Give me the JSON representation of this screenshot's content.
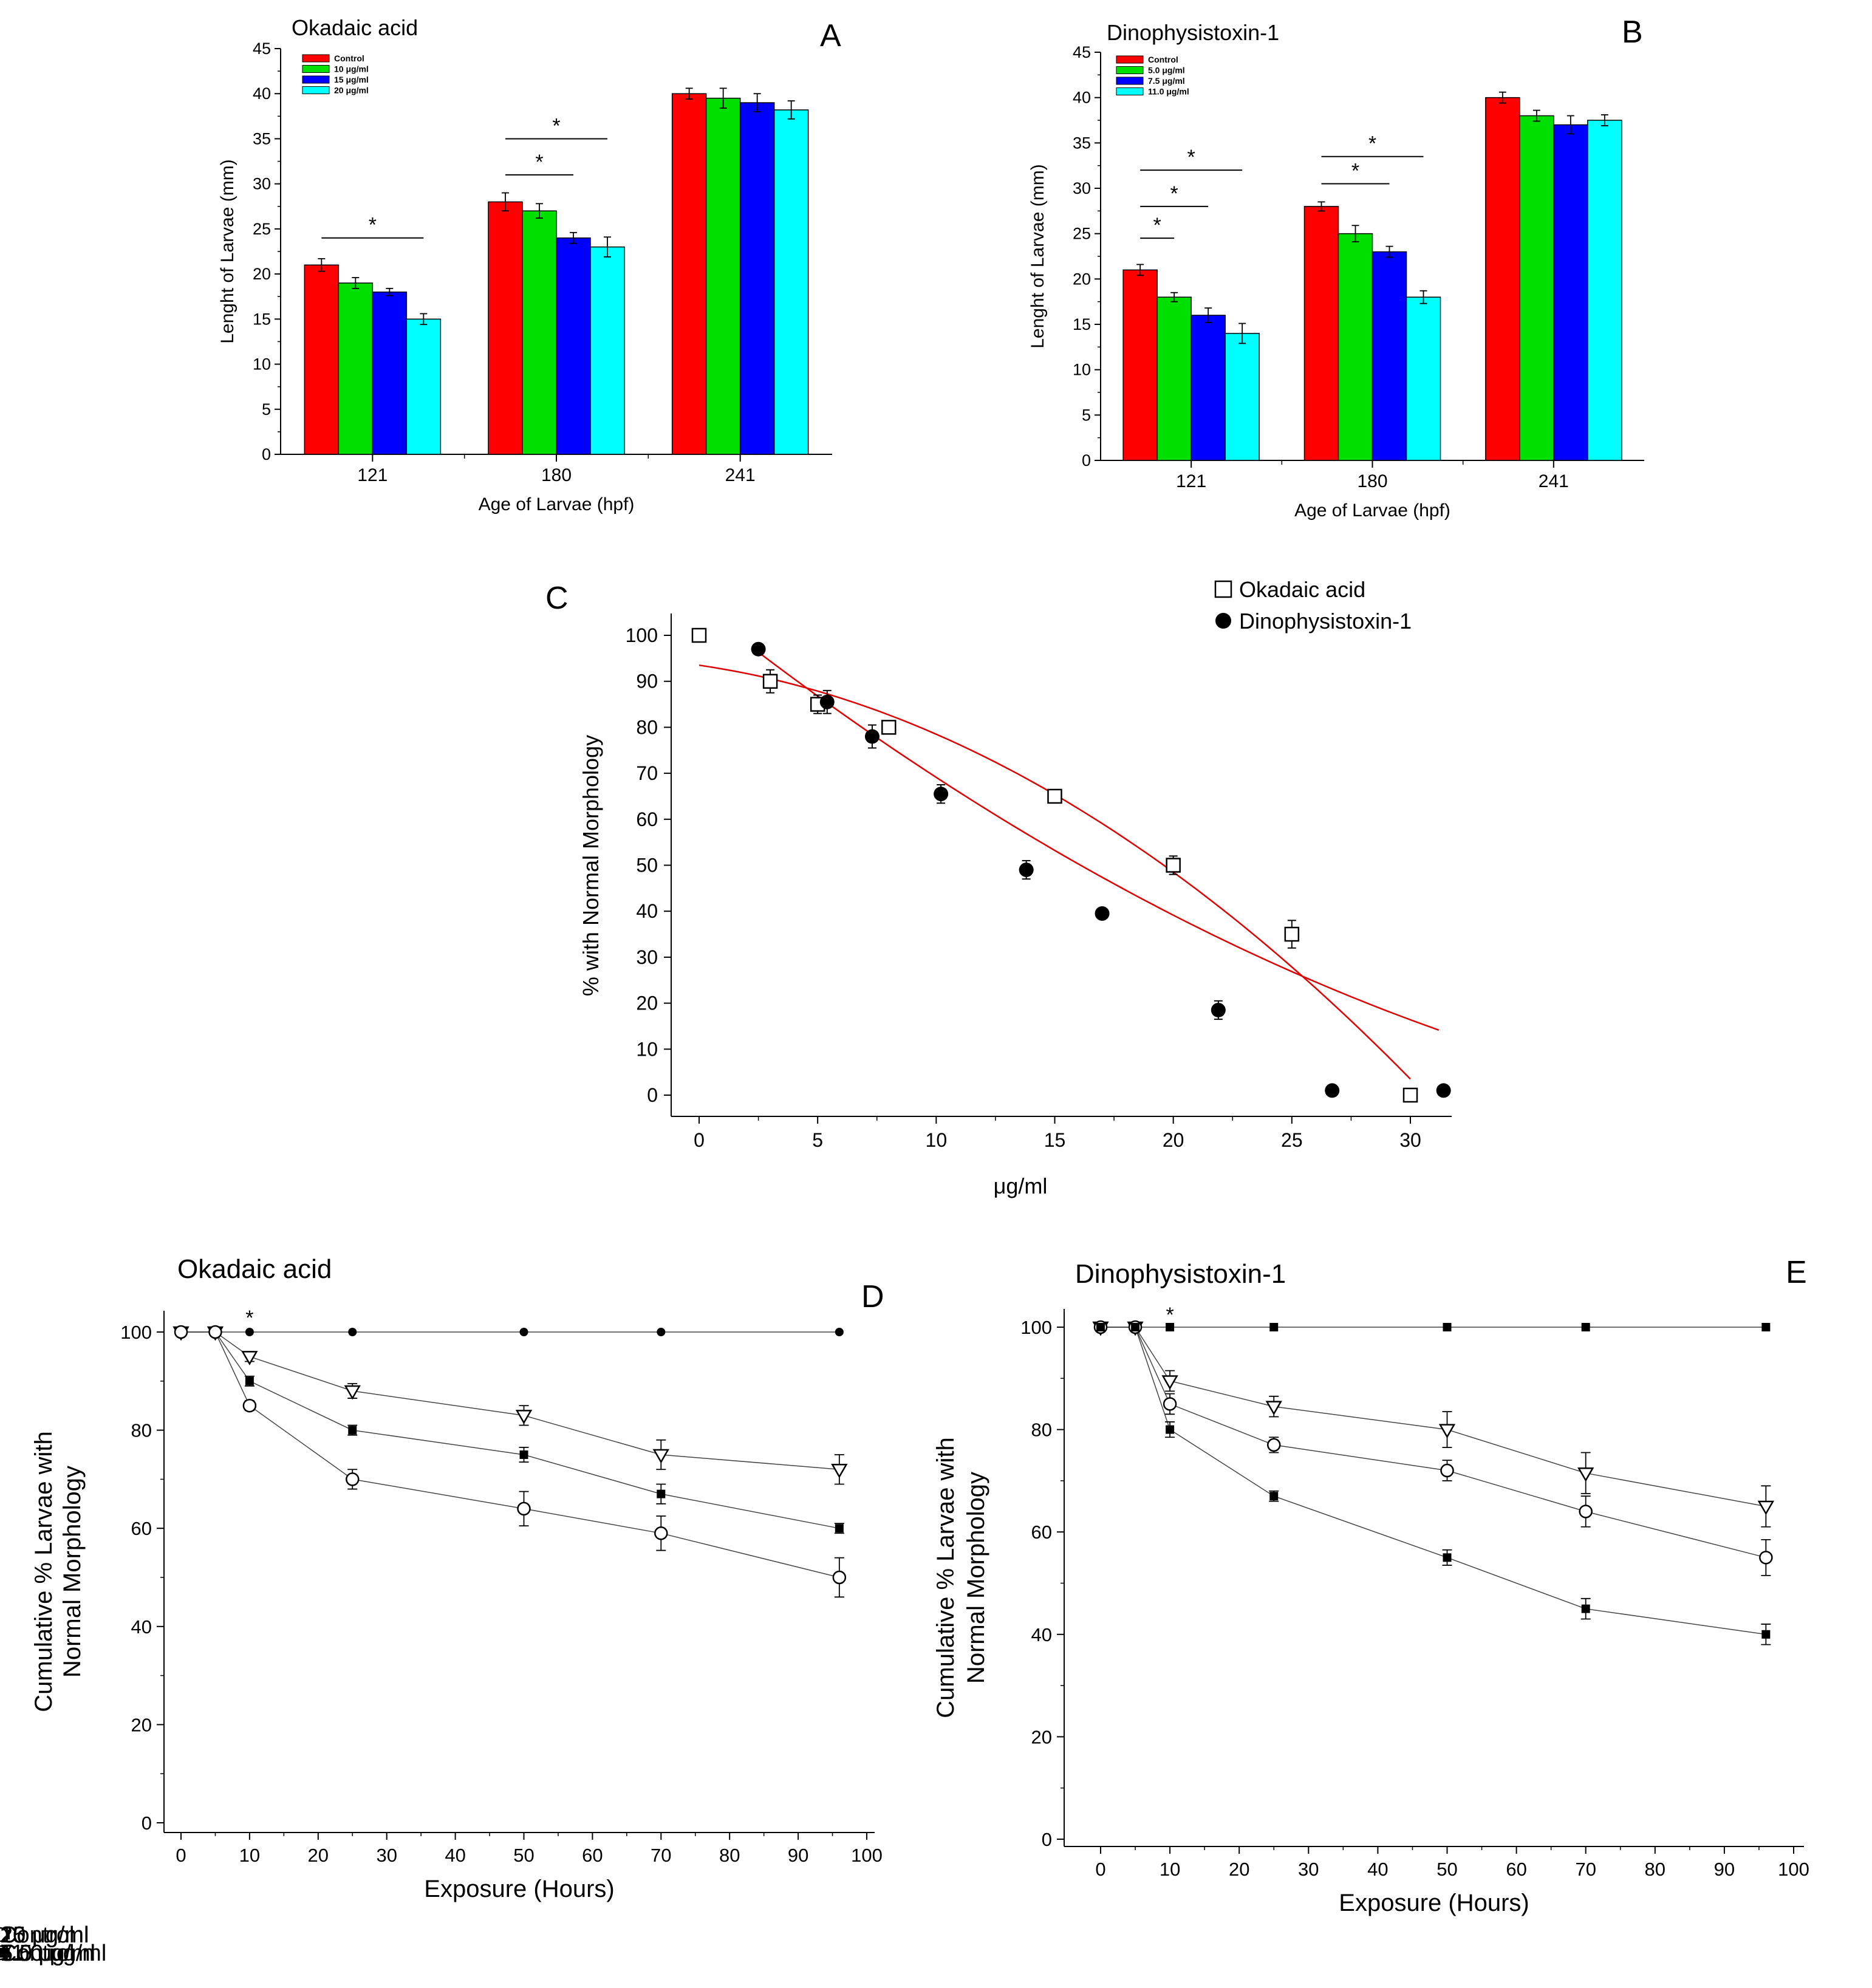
{
  "chart_data": [
    {
      "id": "A",
      "type": "bar",
      "panel_label": "A",
      "title": "Okadaic acid",
      "xlabel": "Age of Larvae (hpf)",
      "ylabel": "Lenght of Larvae (mm)",
      "categories": [
        "121",
        "180",
        "241"
      ],
      "ylim": [
        0,
        45
      ],
      "yticks": [
        "0",
        "5",
        "10",
        "15",
        "20",
        "25",
        "30",
        "35",
        "40",
        "45"
      ],
      "series": [
        {
          "name": "Control",
          "color": "#ff0000",
          "values": [
            21,
            28,
            40
          ],
          "errors": [
            0.7,
            1.0,
            0.6
          ]
        },
        {
          "name": "10 μg/ml",
          "color": "#00e000",
          "values": [
            19,
            27,
            39.5
          ],
          "errors": [
            0.6,
            0.8,
            1.1
          ]
        },
        {
          "name": "15 μg/ml",
          "color": "#0000ff",
          "values": [
            18,
            24,
            39
          ],
          "errors": [
            0.4,
            0.6,
            1.0
          ]
        },
        {
          "name": "20 μg/ml",
          "color": "#00ffff",
          "values": [
            15,
            23,
            38.2
          ],
          "errors": [
            0.6,
            1.1,
            1.0
          ]
        }
      ],
      "significance": [
        {
          "text": "*",
          "group": 0,
          "from": 0,
          "to": 3,
          "y": 24
        },
        {
          "text": "*",
          "group": 1,
          "from": 0,
          "to": 2,
          "y": 31
        },
        {
          "text": "*",
          "group": 1,
          "from": 0,
          "to": 3,
          "y": 35
        }
      ]
    },
    {
      "id": "B",
      "type": "bar",
      "panel_label": "B",
      "title": "Dinophysistoxin-1",
      "xlabel": "Age of Larvae (hpf)",
      "ylabel": "Lenght of Larvae (mm)",
      "categories": [
        "121",
        "180",
        "241"
      ],
      "ylim": [
        0,
        45
      ],
      "yticks": [
        "0",
        "5",
        "10",
        "15",
        "20",
        "25",
        "30",
        "35",
        "40",
        "45"
      ],
      "series": [
        {
          "name": "Control",
          "color": "#ff0000",
          "values": [
            21,
            28,
            40
          ],
          "errors": [
            0.6,
            0.5,
            0.6
          ]
        },
        {
          "name": "5.0 μg/ml",
          "color": "#00e000",
          "values": [
            18,
            25,
            38
          ],
          "errors": [
            0.5,
            0.9,
            0.6
          ]
        },
        {
          "name": "7.5 μg/ml",
          "color": "#0000ff",
          "values": [
            16,
            23,
            37
          ],
          "errors": [
            0.8,
            0.6,
            1.0
          ]
        },
        {
          "name": "11.0 μg/ml",
          "color": "#00ffff",
          "values": [
            14,
            18,
            37.5
          ],
          "errors": [
            1.1,
            0.7,
            0.6
          ]
        }
      ],
      "significance": [
        {
          "text": "*",
          "group": 0,
          "from": 0,
          "to": 1,
          "y": 24.5
        },
        {
          "text": "*",
          "group": 0,
          "from": 0,
          "to": 2,
          "y": 28
        },
        {
          "text": "*",
          "group": 0,
          "from": 0,
          "to": 3,
          "y": 32
        },
        {
          "text": "*",
          "group": 1,
          "from": 0,
          "to": 2,
          "y": 30.5
        },
        {
          "text": "*",
          "group": 1,
          "from": 0,
          "to": 3,
          "y": 33.5
        }
      ]
    },
    {
      "id": "C",
      "type": "scatter",
      "panel_label": "C",
      "xlabel": "μg/ml",
      "ylabel": "% with Normal Morphology",
      "xlim": [
        -1,
        31.5
      ],
      "ylim": [
        -5,
        105
      ],
      "xticks": [
        0,
        5,
        10,
        15,
        20,
        25,
        30
      ],
      "yticks": [
        0,
        10,
        20,
        30,
        40,
        50,
        60,
        70,
        80,
        90,
        100
      ],
      "fit_color": "#e00000",
      "series": [
        {
          "name": "Okadaic acid",
          "marker": "open-square",
          "x": [
            0,
            3,
            5,
            8,
            15,
            20,
            25,
            30
          ],
          "y": [
            100,
            90,
            85,
            80,
            65,
            50,
            35,
            0
          ],
          "errors": [
            0,
            2.5,
            2,
            1,
            1,
            2,
            3,
            0.5
          ],
          "fit": {
            "x": [
              0,
              30
            ],
            "poly": [
              93.5,
              -0.75,
              -0.075
            ]
          }
        },
        {
          "name": "Dinophysistoxin-1",
          "marker": "filled-circle",
          "x": [
            2.5,
            5.4,
            7.3,
            10.2,
            13.8,
            17,
            21.9,
            26.7,
            31.4
          ],
          "y": [
            97,
            85.5,
            78,
            65.5,
            49,
            39.5,
            18.5,
            1,
            1
          ],
          "errors": [
            0,
            2.5,
            2.5,
            2,
            2,
            1,
            2,
            0,
            0
          ],
          "fit": {
            "x": [
              2.5,
              31.2
            ],
            "poly": [
              106.3,
              -4.08,
              0.0361
            ]
          }
        }
      ]
    },
    {
      "id": "D",
      "type": "line",
      "panel_label": "D",
      "title": "Okadaic acid",
      "xlabel": "Exposure (Hours)",
      "ylabel": [
        "Cumulative % Larvae with",
        "Normal Morphology"
      ],
      "xlim": [
        -3,
        100
      ],
      "ylim": [
        0,
        105
      ],
      "xticks": [
        0,
        10,
        20,
        30,
        40,
        50,
        60,
        70,
        80,
        90,
        100
      ],
      "yticks": [
        0,
        20,
        40,
        60,
        80,
        100
      ],
      "annotation": {
        "text": "*",
        "x": 10,
        "y": 103
      },
      "series": [
        {
          "name": "Control",
          "marker": "filled-circle",
          "x": [
            0,
            5,
            10,
            25,
            50,
            70,
            96
          ],
          "y": [
            100,
            100,
            100,
            100,
            100,
            100,
            100
          ],
          "errors": [
            0,
            0,
            0,
            0,
            0,
            0,
            0
          ]
        },
        {
          "name": "10 μg/ml",
          "marker": "open-triangle-down",
          "x": [
            0,
            5,
            10,
            25,
            50,
            70,
            96
          ],
          "y": [
            100,
            100,
            95,
            88,
            83,
            75,
            72
          ],
          "errors": [
            0,
            0,
            1,
            1.5,
            2,
            3,
            3
          ]
        },
        {
          "name": "15 μg/ml",
          "marker": "filled-square",
          "x": [
            0,
            5,
            10,
            25,
            50,
            70,
            96
          ],
          "y": [
            100,
            100,
            90,
            80,
            75,
            67,
            60
          ],
          "errors": [
            0,
            0,
            1,
            1,
            1.5,
            2,
            1
          ]
        },
        {
          "name": "20 μg/ml",
          "marker": "open-circle",
          "x": [
            0,
            5,
            10,
            25,
            50,
            70,
            96
          ],
          "y": [
            100,
            100,
            85,
            70,
            64,
            59,
            50
          ],
          "errors": [
            0,
            0,
            1,
            2,
            3.5,
            3.5,
            4
          ]
        }
      ]
    },
    {
      "id": "E",
      "type": "line",
      "panel_label": "E",
      "title": "Dinophysistoxin-1",
      "xlabel": "Exposure (Hours)",
      "ylabel": [
        "Cumulative % Larvae with",
        "Normal Morphology"
      ],
      "xlim": [
        -3,
        100
      ],
      "ylim": [
        0,
        104
      ],
      "xticks": [
        0,
        10,
        20,
        30,
        40,
        50,
        60,
        70,
        80,
        90,
        100
      ],
      "yticks": [
        0,
        20,
        40,
        60,
        80,
        100
      ],
      "annotation": {
        "text": "*",
        "x": 10,
        "y": 102.5
      },
      "series": [
        {
          "name": "Control",
          "marker": "filled-square",
          "x": [
            0,
            5,
            10,
            25,
            50,
            70,
            96
          ],
          "y": [
            100,
            100,
            100,
            100,
            100,
            100,
            100
          ],
          "errors": [
            0,
            0,
            0,
            0,
            0,
            0,
            0
          ]
        },
        {
          "name": "5.0 μg/ml",
          "marker": "open-triangle-down",
          "x": [
            0,
            5,
            10,
            25,
            50,
            70,
            96
          ],
          "y": [
            100,
            100,
            89.5,
            84.5,
            80,
            71.5,
            65
          ],
          "errors": [
            0,
            0,
            2,
            2,
            3.5,
            4,
            4
          ]
        },
        {
          "name": "7.5 μg/ml",
          "marker": "open-circle",
          "x": [
            0,
            5,
            10,
            25,
            50,
            70,
            96
          ],
          "y": [
            100,
            100,
            85,
            77,
            72,
            64,
            55
          ],
          "errors": [
            0,
            0,
            2,
            1.5,
            2,
            3,
            3.5
          ]
        },
        {
          "name": "11.0 μg/ml",
          "marker": "filled-square",
          "x": [
            0,
            5,
            10,
            25,
            50,
            70,
            96
          ],
          "y": [
            100,
            100,
            80,
            67,
            55,
            45,
            40
          ],
          "errors": [
            0,
            0,
            1.5,
            1,
            1.5,
            2,
            2
          ]
        }
      ]
    }
  ]
}
